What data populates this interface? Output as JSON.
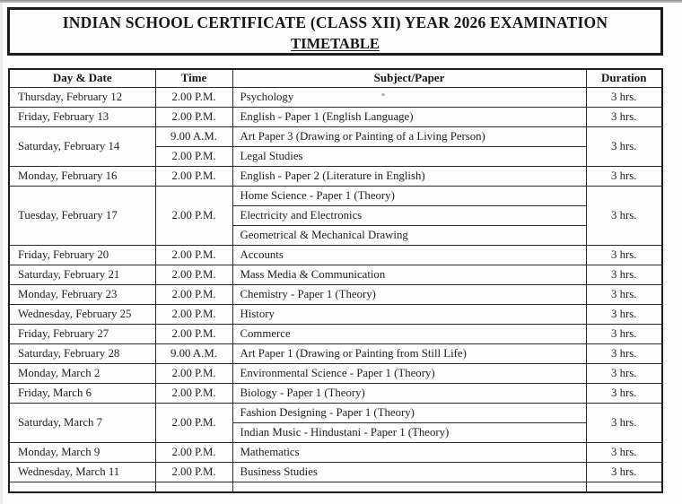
{
  "title": {
    "line1": "INDIAN SCHOOL CERTIFICATE (CLASS XII) YEAR 2026 EXAMINATION",
    "line2": "TIMETABLE"
  },
  "table": {
    "headers": [
      "Day & Date",
      "Time",
      "Subject/Paper",
      "Duration"
    ],
    "groups": [
      {
        "day": "Thursday, February 12",
        "rows": [
          {
            "time": "2.00 P.M.",
            "subject": "Psychology"
          }
        ],
        "duration": "3 hrs."
      },
      {
        "day": "Friday, February 13",
        "rows": [
          {
            "time": "2.00 P.M.",
            "subject": "English - Paper 1 (English Language)"
          }
        ],
        "duration": "3 hrs."
      },
      {
        "day": "Saturday, February 14",
        "rows": [
          {
            "time": "9.00 A.M.",
            "subject": "Art Paper 3 (Drawing or Painting of a Living Person)"
          },
          {
            "time": "2.00 P.M.",
            "subject": "Legal Studies"
          }
        ],
        "duration": "3 hrs."
      },
      {
        "day": "Monday, February 16",
        "rows": [
          {
            "time": "2.00 P.M.",
            "subject": "English - Paper 2 (Literature in English)"
          }
        ],
        "duration": "3 hrs."
      },
      {
        "day": "Tuesday, February 17",
        "merged_time": "2.00 P.M.",
        "rows": [
          {
            "subject": "Home Science - Paper 1 (Theory)"
          },
          {
            "subject": "Electricity and Electronics"
          },
          {
            "subject": "Geometrical & Mechanical Drawing"
          }
        ],
        "duration": "3 hrs."
      },
      {
        "day": "Friday, February 20",
        "rows": [
          {
            "time": "2.00 P.M.",
            "subject": "Accounts"
          }
        ],
        "duration": "3 hrs."
      },
      {
        "day": "Saturday, February 21",
        "rows": [
          {
            "time": "2.00 P.M.",
            "subject": "Mass Media & Communication"
          }
        ],
        "duration": "3 hrs."
      },
      {
        "day": "Monday, February 23",
        "rows": [
          {
            "time": "2.00 P.M.",
            "subject": "Chemistry - Paper 1 (Theory)"
          }
        ],
        "duration": "3 hrs."
      },
      {
        "day": "Wednesday, February 25",
        "rows": [
          {
            "time": "2.00 P.M.",
            "subject": "History"
          }
        ],
        "duration": "3 hrs."
      },
      {
        "day": "Friday, February 27",
        "rows": [
          {
            "time": "2.00 P.M.",
            "subject": "Commerce"
          }
        ],
        "duration": "3 hrs."
      },
      {
        "day": "Saturday, February 28",
        "rows": [
          {
            "time": "9.00 A.M.",
            "subject": "Art Paper 1 (Drawing or Painting from Still Life)"
          }
        ],
        "duration": "3 hrs."
      },
      {
        "day": "Monday, March 2",
        "rows": [
          {
            "time": "2.00 P.M.",
            "subject": "Environmental Science - Paper 1 (Theory)"
          }
        ],
        "duration": "3 hrs."
      },
      {
        "day": "Friday, March 6",
        "rows": [
          {
            "time": "2.00 P.M.",
            "subject": "Biology - Paper 1 (Theory)"
          }
        ],
        "duration": "3 hrs."
      },
      {
        "day": "Saturday, March 7",
        "merged_time": "2.00 P.M.",
        "rows": [
          {
            "subject": "Fashion Designing - Paper 1 (Theory)"
          },
          {
            "subject": "Indian Music - Hindustani - Paper 1 (Theory)"
          }
        ],
        "duration": "3 hrs."
      },
      {
        "day": "Monday, March 9",
        "rows": [
          {
            "time": "2.00 P.M.",
            "subject": "Mathematics"
          }
        ],
        "duration": "3 hrs."
      },
      {
        "day": "Wednesday, March 11",
        "rows": [
          {
            "time": "2.00 P.M.",
            "subject": "Business Studies"
          }
        ],
        "duration": "3 hrs."
      }
    ]
  },
  "colors": {
    "paper": "#fdfdfd",
    "ink": "#1e1e1e",
    "border": "#2a2a2a"
  }
}
